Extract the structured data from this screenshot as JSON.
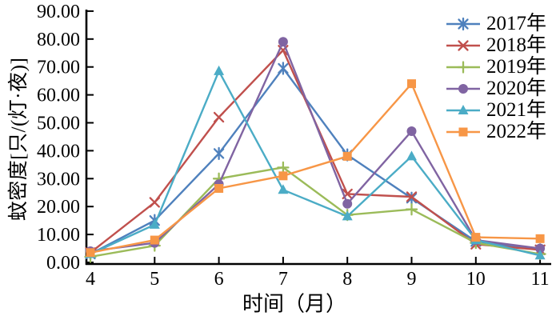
{
  "chart_data": {
    "type": "line",
    "xlabel": "时间（月）",
    "ylabel": "蚊密度[只/(灯·夜)]",
    "x": [
      4,
      5,
      6,
      7,
      8,
      9,
      10,
      11
    ],
    "xticks": [
      "4",
      "5",
      "6",
      "7",
      "8",
      "9",
      "10",
      "11"
    ],
    "yticks": [
      "0.00",
      "10.00",
      "20.00",
      "30.00",
      "40.00",
      "50.00",
      "60.00",
      "70.00",
      "80.00",
      "90.00"
    ],
    "ylim": [
      0,
      90
    ],
    "grid": false,
    "legend_position": "top-right",
    "axis_color": "#000000",
    "series": [
      {
        "name": "2017年",
        "color": "#4F81BD",
        "marker": "asterisk",
        "values": [
          3.0,
          15.0,
          39.0,
          69.5,
          38.5,
          23.0,
          7.5,
          4.5
        ]
      },
      {
        "name": "2018年",
        "color": "#C0504D",
        "marker": "x",
        "values": [
          3.5,
          21.5,
          52.0,
          76.0,
          24.5,
          23.5,
          6.5,
          4.5
        ]
      },
      {
        "name": "2019年",
        "color": "#9BBB59",
        "marker": "plus",
        "values": [
          2.0,
          6.0,
          30.0,
          34.0,
          17.0,
          19.0,
          7.0,
          3.0
        ]
      },
      {
        "name": "2020年",
        "color": "#8064A2",
        "marker": "circle",
        "values": [
          4.0,
          7.0,
          28.0,
          79.0,
          21.0,
          47.0,
          8.0,
          5.0
        ]
      },
      {
        "name": "2021年",
        "color": "#4BACC6",
        "marker": "triangle",
        "values": [
          3.0,
          13.5,
          68.5,
          26.0,
          16.5,
          38.0,
          8.0,
          2.5
        ]
      },
      {
        "name": "2022年",
        "color": "#F79646",
        "marker": "square",
        "values": [
          3.5,
          8.0,
          26.5,
          31.0,
          38.0,
          64.0,
          9.0,
          8.5
        ]
      }
    ]
  }
}
